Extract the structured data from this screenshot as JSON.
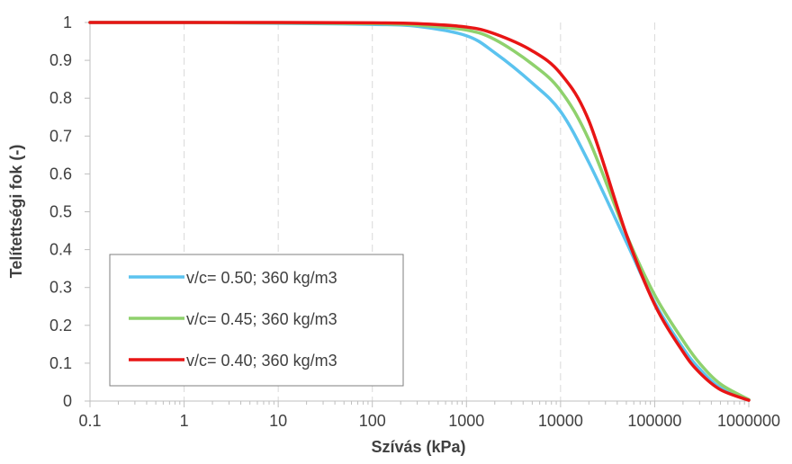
{
  "chart_data": {
    "type": "line",
    "title": "",
    "xlabel": "Szívás (kPa)",
    "ylabel": "Telítettségi fok (-)",
    "xscale": "log",
    "xlim": [
      0.1,
      1000000
    ],
    "ylim": [
      0,
      1
    ],
    "x_tick_labels": [
      "0.1",
      "1",
      "10",
      "100",
      "1000",
      "10000",
      "100000",
      "1000000"
    ],
    "y_tick_labels": [
      "0",
      "0.1",
      "0.2",
      "0.3",
      "0.4",
      "0.5",
      "0.6",
      "0.7",
      "0.8",
      "0.9",
      "1"
    ],
    "grid": "vertical dashed at decades",
    "legend_position": "bottom-left",
    "series": [
      {
        "name": "v/c= 0.50; 360 kg/m3",
        "color": "#5bc3ef",
        "x": [
          0.1,
          1,
          10,
          100,
          300,
          1000,
          2000,
          5000,
          10000,
          20000,
          50000,
          100000,
          200000,
          300000,
          500000,
          1000000
        ],
        "y": [
          1.0,
          1.0,
          0.998,
          0.995,
          0.99,
          0.965,
          0.92,
          0.84,
          0.765,
          0.63,
          0.42,
          0.26,
          0.14,
          0.085,
          0.035,
          0.003
        ]
      },
      {
        "name": "v/c= 0.45; 360 kg/m3",
        "color": "#8fd16d",
        "x": [
          0.1,
          1,
          10,
          100,
          300,
          1000,
          2000,
          5000,
          10000,
          20000,
          50000,
          100000,
          200000,
          300000,
          500000,
          1000000
        ],
        "y": [
          1.0,
          1.0,
          0.999,
          0.997,
          0.993,
          0.98,
          0.955,
          0.89,
          0.82,
          0.69,
          0.44,
          0.28,
          0.16,
          0.1,
          0.045,
          0.004
        ]
      },
      {
        "name": "v/c= 0.40; 360 kg/m3",
        "color": "#e81515",
        "x": [
          0.1,
          1,
          10,
          100,
          300,
          1000,
          2000,
          5000,
          10000,
          20000,
          50000,
          100000,
          200000,
          300000,
          500000,
          1000000
        ],
        "y": [
          1.0,
          1.0,
          1.0,
          0.999,
          0.997,
          0.988,
          0.97,
          0.925,
          0.865,
          0.74,
          0.44,
          0.255,
          0.13,
          0.075,
          0.03,
          0.002
        ]
      }
    ]
  }
}
